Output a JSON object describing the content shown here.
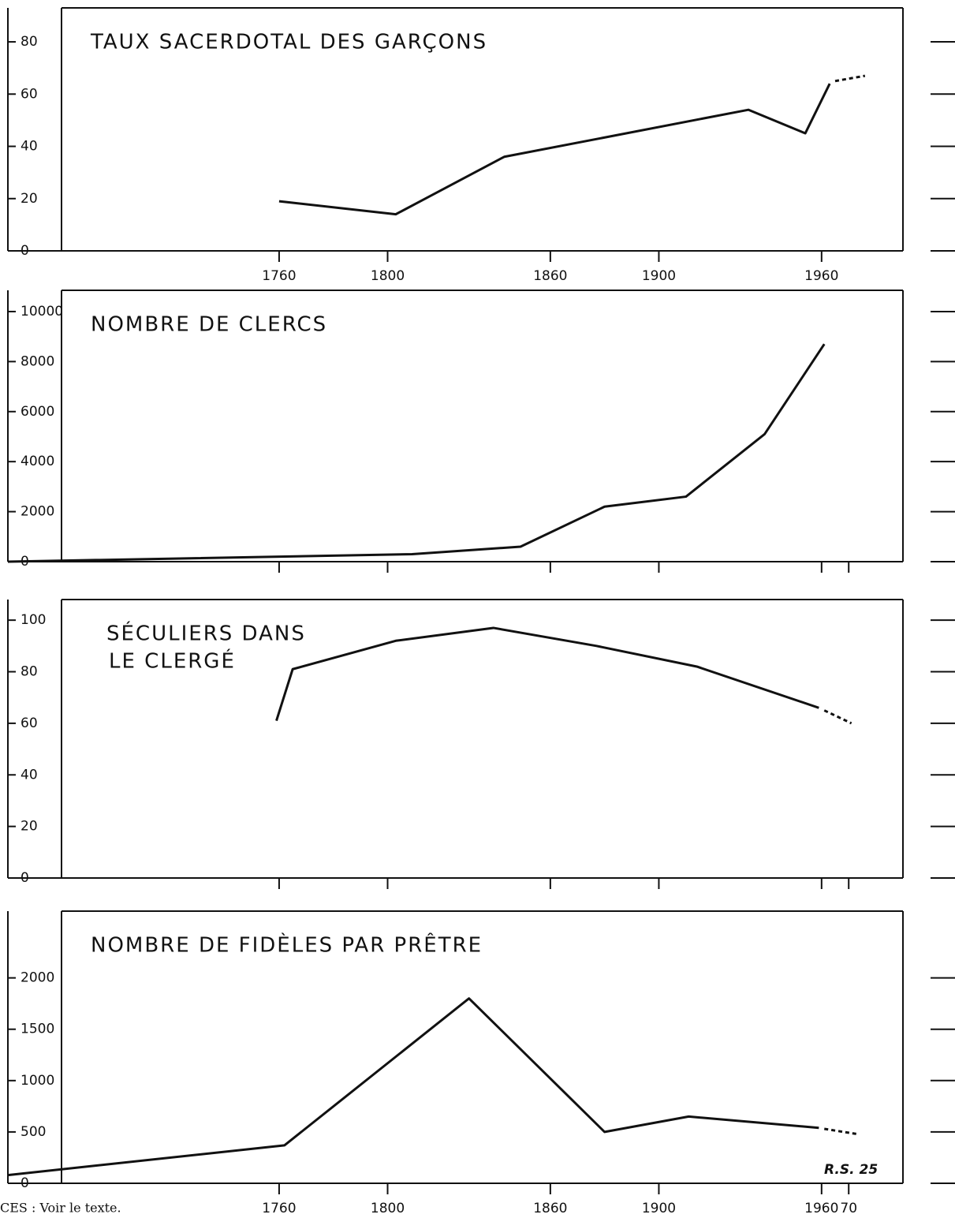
{
  "chart_data": [
    {
      "type": "line",
      "title": "TAUX SACERDOTAL DES GARÇONS",
      "xlim": [
        1660,
        1990
      ],
      "xticks": [
        1760,
        1800,
        1860,
        1900,
        1960
      ],
      "xtick_labels_shown": true,
      "ylim": [
        0,
        93
      ],
      "yticks": [
        0,
        20,
        40,
        60,
        80
      ],
      "series": [
        {
          "color": "#111111",
          "line_style": "solid",
          "x": [
            1760,
            1803,
            1843,
            1933,
            1954,
            1963
          ],
          "values": [
            19,
            14,
            36,
            54,
            45,
            64
          ]
        },
        {
          "color": "#111111",
          "line_style": "dashed",
          "x": [
            1965,
            1976
          ],
          "values": [
            65,
            67
          ]
        }
      ]
    },
    {
      "type": "line",
      "title": "NOMBRE DE CLERCS",
      "xlim": [
        1660,
        1990
      ],
      "xticks": [
        1760,
        1800,
        1860,
        1900,
        1960,
        1970
      ],
      "xtick_labels_shown": false,
      "ylim": [
        0,
        10850
      ],
      "yticks": [
        0,
        2000,
        4000,
        6000,
        8000,
        10000
      ],
      "series": [
        {
          "color": "#111111",
          "line_style": "solid",
          "x": [
            1660,
            1809,
            1849,
            1880,
            1910,
            1939,
            1961
          ],
          "values": [
            0,
            300,
            600,
            2200,
            2600,
            5100,
            8700
          ]
        }
      ]
    },
    {
      "type": "line",
      "title": [
        "SÉCULIERS DANS",
        "LE CLERGÉ"
      ],
      "xlim": [
        1660,
        1990
      ],
      "xticks": [
        1760,
        1800,
        1860,
        1900,
        1960,
        1970
      ],
      "xtick_labels_shown": false,
      "ylim": [
        0,
        108
      ],
      "yticks": [
        0,
        20,
        40,
        60,
        80,
        100
      ],
      "series": [
        {
          "color": "#111111",
          "line_style": "solid",
          "x": [
            1759,
            1765,
            1803,
            1839,
            1877,
            1914,
            1959
          ],
          "values": [
            61,
            81,
            92,
            97,
            90,
            82,
            66
          ]
        },
        {
          "color": "#111111",
          "line_style": "dashed",
          "x": [
            1961,
            1971
          ],
          "values": [
            65,
            60
          ]
        }
      ]
    },
    {
      "type": "line",
      "title": "NOMBRE DE FIDÈLES PAR PRÊTRE",
      "xlim": [
        1660,
        1990
      ],
      "xticks": [
        1760,
        1800,
        1860,
        1900,
        1960,
        {
          "value": 1970,
          "label": "70"
        }
      ],
      "xtick_labels_shown": true,
      "ylim": [
        0,
        2650
      ],
      "yticks": [
        0,
        500,
        1000,
        1500,
        2000
      ],
      "annotation": "R.S. 25",
      "series": [
        {
          "color": "#111111",
          "line_style": "solid",
          "x": [
            1660,
            1762,
            1830,
            1880,
            1911,
            1959
          ],
          "values": [
            80,
            370,
            1800,
            500,
            650,
            540
          ]
        },
        {
          "color": "#111111",
          "line_style": "dashed",
          "x": [
            1961,
            1973
          ],
          "values": [
            530,
            480
          ]
        }
      ]
    }
  ],
  "footer": "CES :  Voir le texte."
}
